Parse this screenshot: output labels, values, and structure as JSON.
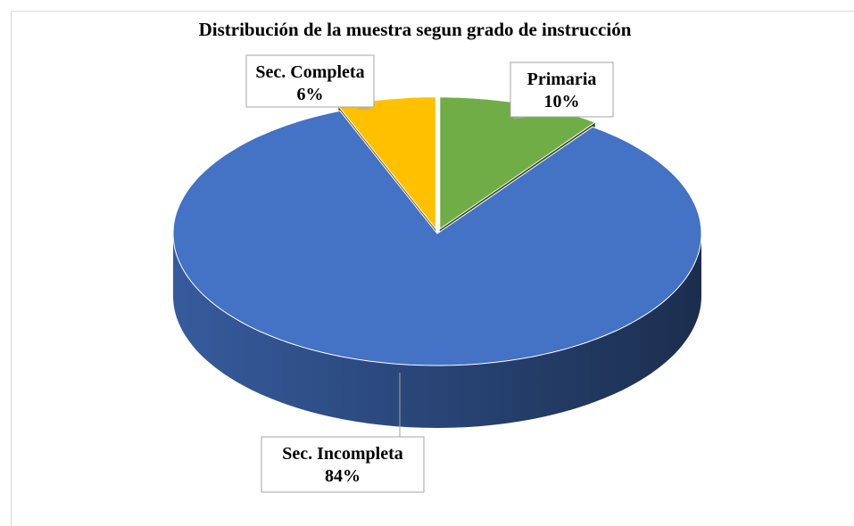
{
  "chart_data": {
    "type": "pie",
    "title": "Distribución de la muestra segun grado de instrucción",
    "categories": [
      "Primaria",
      "Sec. Incompleta",
      "Sec. Completa"
    ],
    "values": [
      10,
      84,
      6
    ],
    "value_labels": [
      "10%",
      "84%",
      "6%"
    ],
    "colors": [
      "#70ad47",
      "#4472c4",
      "#ffc000"
    ],
    "three_d": true
  }
}
